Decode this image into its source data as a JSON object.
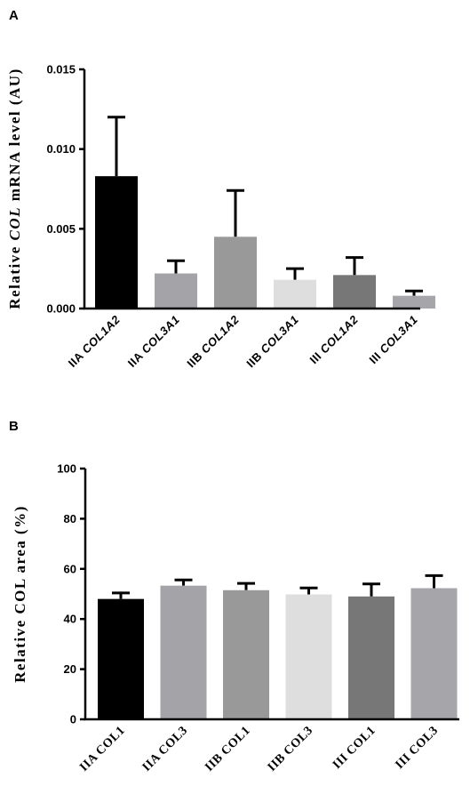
{
  "chart_data": [
    {
      "type": "bar",
      "panel_label": "A",
      "ylabel_parts": [
        {
          "text": "Relative ",
          "italic": false
        },
        {
          "text": "COL",
          "italic": true
        },
        {
          "text": " mRNA level (AU)",
          "italic": false
        }
      ],
      "categories": [
        {
          "prefix": "IIA ",
          "gene": "COL1A2"
        },
        {
          "prefix": "IIA ",
          "gene": "COL3A1"
        },
        {
          "prefix": "IIB ",
          "gene": "COL1A2"
        },
        {
          "prefix": "IIB ",
          "gene": "COL3A1"
        },
        {
          "prefix": "III ",
          "gene": "COL1A2"
        },
        {
          "prefix": "III ",
          "gene": "COL3A1"
        }
      ],
      "values": [
        0.0083,
        0.0022,
        0.0045,
        0.0018,
        0.0021,
        0.0008
      ],
      "errors": [
        0.0037,
        0.0008,
        0.0029,
        0.0007,
        0.0011,
        0.0003
      ],
      "colors": [
        "#000000",
        "#a3a3a8",
        "#999999",
        "#dedede",
        "#777777",
        "#a6a6aa"
      ],
      "ylim": [
        0,
        0.015
      ],
      "yticks": [
        "0.000",
        "0.005",
        "0.010",
        "0.015"
      ]
    },
    {
      "type": "bar",
      "panel_label": "B",
      "ylabel_parts": [
        {
          "text": "Relative COL area (%)",
          "italic": false
        }
      ],
      "categories": [
        "IIA COL1",
        "IIA COL3",
        "IIB COL1",
        "IIB COL3",
        "III COL1",
        "III COL3"
      ],
      "values": [
        48,
        53.3,
        51.5,
        49.8,
        49,
        52.3
      ],
      "errors": [
        2.4,
        2.3,
        2.7,
        2.6,
        5,
        5
      ],
      "colors": [
        "#000000",
        "#a3a3a8",
        "#999999",
        "#dedede",
        "#777777",
        "#a6a6aa"
      ],
      "ylim": [
        0,
        100
      ],
      "yticks": [
        "0",
        "20",
        "40",
        "60",
        "80",
        "100"
      ]
    }
  ]
}
